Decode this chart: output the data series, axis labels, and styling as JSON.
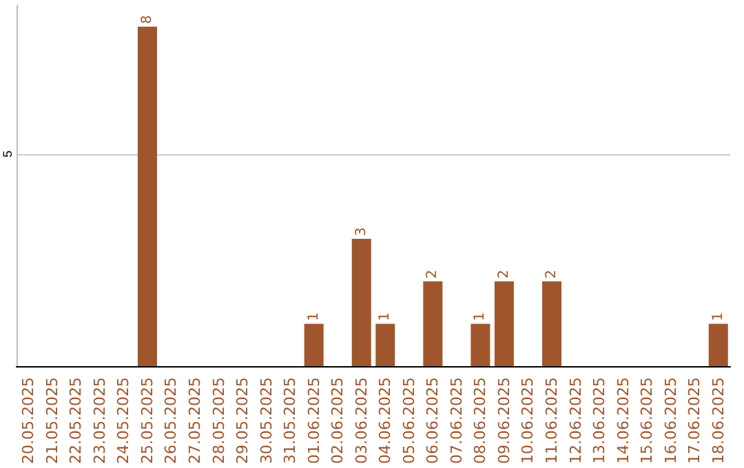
{
  "chart_data": {
    "type": "bar",
    "categories": [
      "20.05.2025",
      "21.05.2025",
      "22.05.2025",
      "23.05.2025",
      "24.05.2025",
      "25.05.2025",
      "26.05.2025",
      "27.05.2025",
      "28.05.2025",
      "29.05.2025",
      "30.05.2025",
      "31.05.2025",
      "01.06.2025",
      "02.06.2025",
      "03.06.2025",
      "04.06.2025",
      "05.06.2025",
      "06.06.2025",
      "07.06.2025",
      "08.06.2025",
      "09.06.2025",
      "10.06.2025",
      "11.06.2025",
      "12.06.2025",
      "13.06.2025",
      "14.06.2025",
      "15.06.2025",
      "16.06.2025",
      "17.06.2025",
      "18.06.2025"
    ],
    "values": [
      0,
      0,
      0,
      0,
      0,
      8,
      0,
      0,
      0,
      0,
      0,
      0,
      1,
      0,
      3,
      1,
      0,
      2,
      0,
      1,
      2,
      0,
      2,
      0,
      0,
      0,
      0,
      0,
      0,
      1
    ],
    "color": "#a0562c",
    "value_labels": [
      null,
      null,
      null,
      null,
      null,
      "8",
      null,
      null,
      null,
      null,
      null,
      null,
      "1",
      null,
      "3",
      "1",
      null,
      "2",
      null,
      "1",
      "2",
      null,
      "2",
      null,
      null,
      null,
      null,
      null,
      null,
      "1"
    ],
    "ylim": [
      0,
      8.5
    ],
    "yticks": [
      5
    ],
    "grid": "y"
  }
}
